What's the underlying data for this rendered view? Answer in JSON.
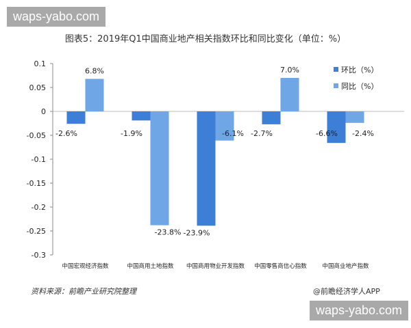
{
  "watermark": "waps-yabo.com",
  "chart_data": {
    "type": "bar",
    "title": "图表5：2019年Q1中国商业地产相关指数环比和同比变化（单位：%）",
    "categories": [
      "中国宏观经济指数",
      "中国商用土地指数",
      "中国商用物业开发指数",
      "中国零售商信心指数",
      "中国商业地产指数"
    ],
    "series": [
      {
        "name": "环比（%）",
        "color": "#3d7fd6",
        "values": [
          -0.026,
          -0.019,
          -0.239,
          -0.027,
          -0.066
        ],
        "labels": [
          "-2.6%",
          "-1.9%",
          "-23.9%",
          "-2.7%",
          "-6.6%"
        ]
      },
      {
        "name": "同比（%）",
        "color": "#6ea6e6",
        "values": [
          0.068,
          -0.238,
          -0.061,
          0.07,
          -0.024
        ],
        "labels": [
          "6.8%",
          "-23.8%",
          "-6.1%",
          "7.0%",
          "-2.4%"
        ]
      }
    ],
    "yticks": [
      "0.1",
      "0.05",
      "0",
      "-0.05",
      "-0.1",
      "-0.15",
      "-0.2",
      "-0.25",
      "-0.3"
    ],
    "ylim": [
      -0.3,
      0.1
    ],
    "legend": "right",
    "grid": false
  },
  "footer": {
    "source": "资料来源：前瞻产业研究院整理",
    "credit": "@前瞻经济学人APP"
  }
}
